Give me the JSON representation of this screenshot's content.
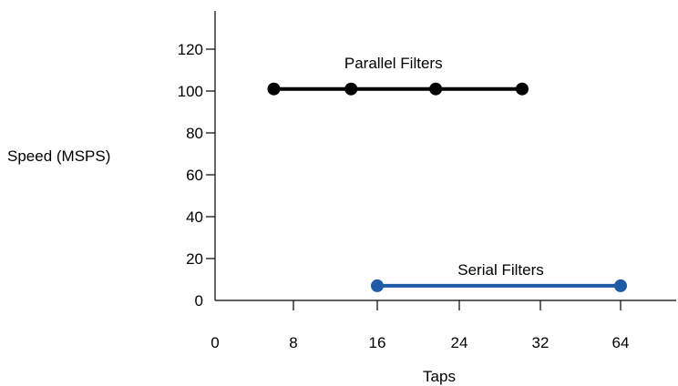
{
  "chart_data": {
    "type": "line",
    "xlabel": "Taps",
    "ylabel": "Speed (MSPS)",
    "x_ticks": [
      "0",
      "8",
      "16",
      "24",
      "32",
      "64"
    ],
    "y_ticks": [
      0,
      20,
      40,
      60,
      80,
      100,
      120
    ],
    "ylim": [
      0,
      130
    ],
    "grid": false,
    "series": [
      {
        "name": "Parallel Filters",
        "color": "#000000",
        "points": [
          {
            "x": 6,
            "y": 101
          },
          {
            "x": 13.5,
            "y": 101
          },
          {
            "x": 21.7,
            "y": 101
          },
          {
            "x": 30.2,
            "y": 101
          }
        ]
      },
      {
        "name": "Serial Filters",
        "color": "#1f5aa6",
        "points": [
          {
            "x": 16,
            "y": 7
          },
          {
            "x": 64,
            "y": 7
          }
        ]
      }
    ]
  }
}
